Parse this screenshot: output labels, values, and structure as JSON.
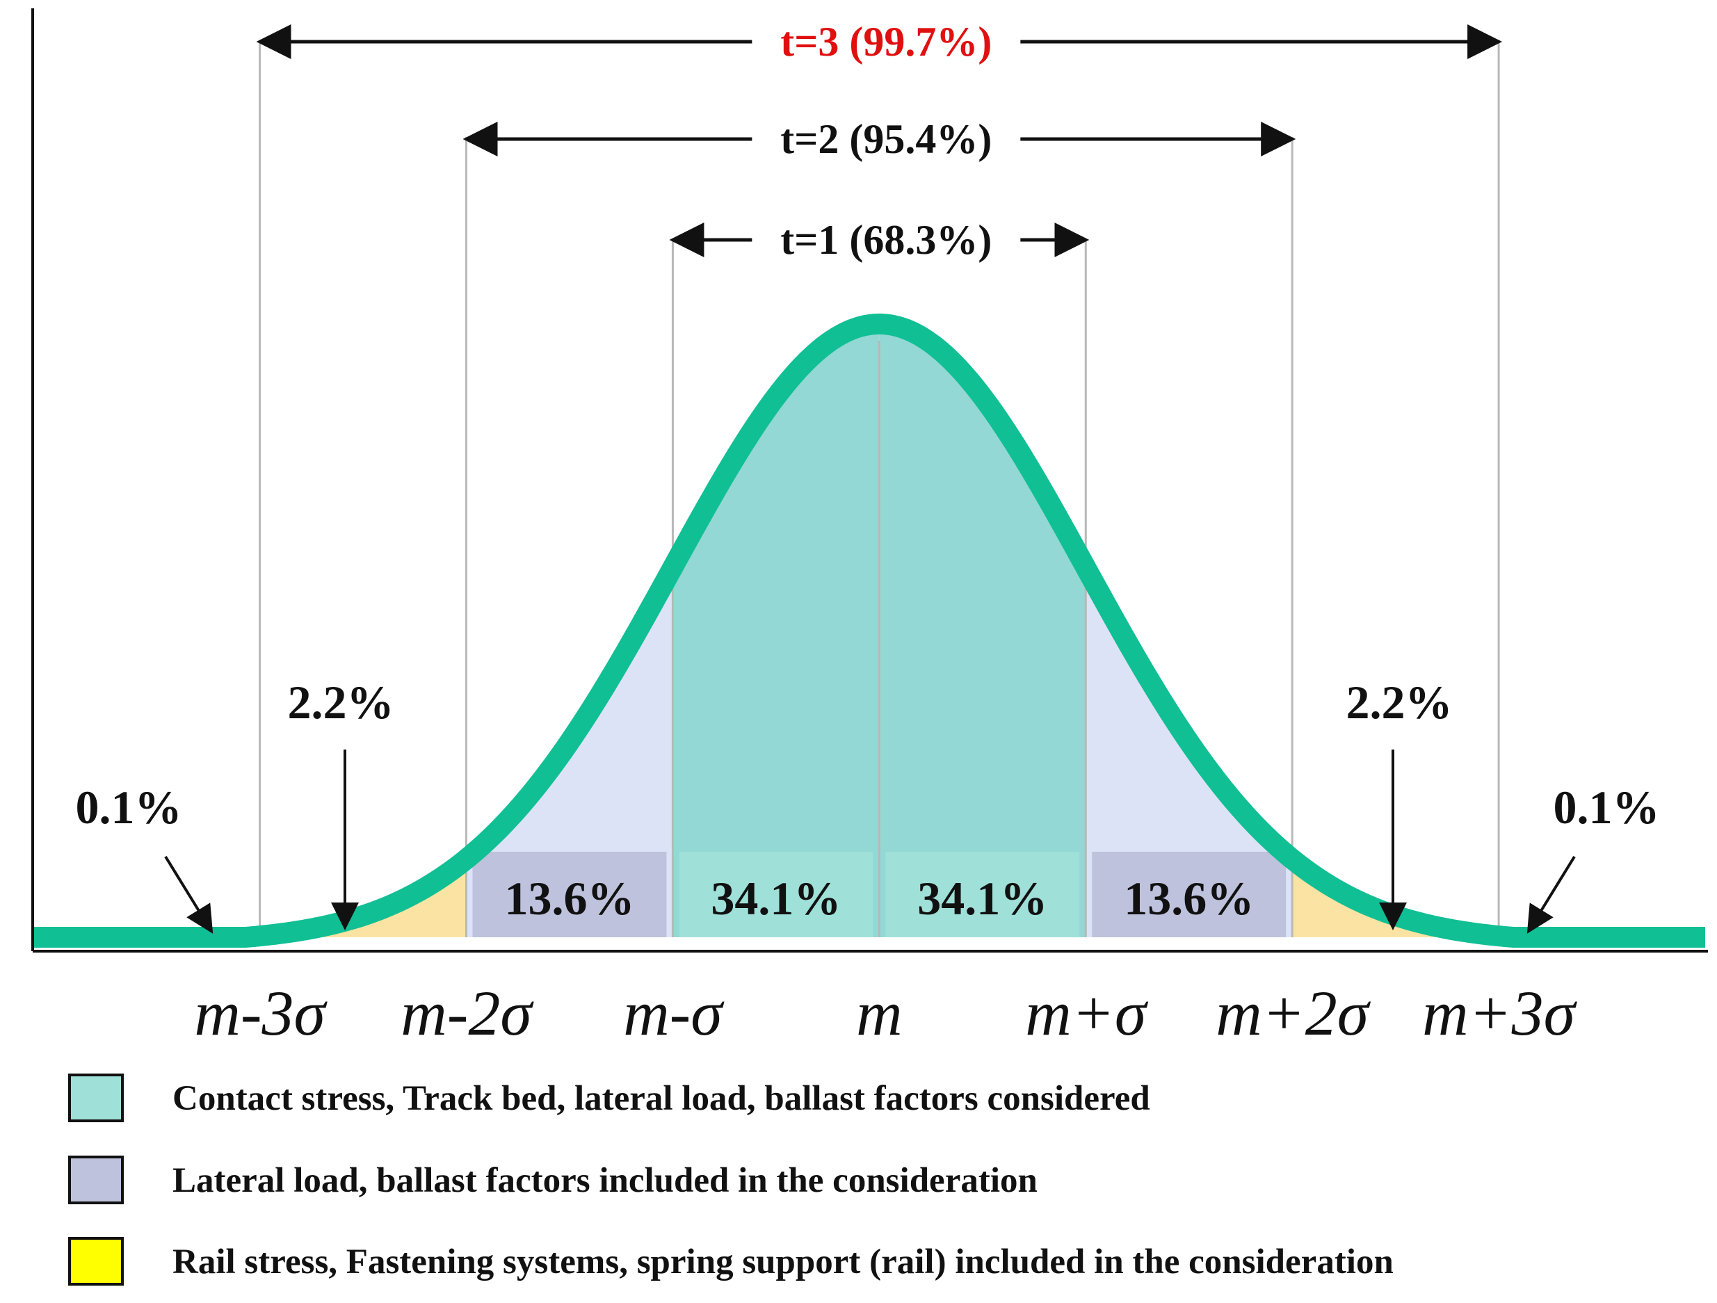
{
  "chart_data": {
    "type": "area",
    "title": "",
    "xlabel": "",
    "ylabel": "",
    "distribution": "normal",
    "xlim": [
      -4.1,
      4.0
    ],
    "ylim": [
      0,
      0.41
    ],
    "tick_labels": [
      "m-3σ",
      "m-2σ",
      "m-σ",
      "m",
      "m+σ",
      "m+2σ",
      "m+3σ"
    ],
    "tick_values": [
      -3,
      -2,
      -1,
      0,
      1,
      2,
      3
    ],
    "regions": [
      {
        "from": -4.1,
        "to": -3,
        "percent": "0.1%",
        "color": "#f7c6cc"
      },
      {
        "from": -3,
        "to": -2,
        "percent": "2.2%",
        "color": "#fbe3a3"
      },
      {
        "from": -2,
        "to": -1,
        "percent": "13.6%",
        "color": "#dde3f6"
      },
      {
        "from": -1,
        "to": 0,
        "percent": "34.1%",
        "color": "#93d8d4"
      },
      {
        "from": 0,
        "to": 1,
        "percent": "34.1%",
        "color": "#93d8d4"
      },
      {
        "from": 1,
        "to": 2,
        "percent": "13.6%",
        "color": "#dde3f6"
      },
      {
        "from": 2,
        "to": 3,
        "percent": "2.2%",
        "color": "#fbe3a3"
      },
      {
        "from": 3,
        "to": 4.0,
        "percent": "0.1%",
        "color": "#f7c6cc"
      }
    ],
    "intervals": [
      {
        "label": "t=1 (68.3%)",
        "from": -1,
        "to": 1,
        "color": "#111111"
      },
      {
        "label": "t=2 (95.4%)",
        "from": -2,
        "to": 2,
        "color": "#111111"
      },
      {
        "label": "t=3 (99.7%)",
        "from": -3,
        "to": 3,
        "color": "#e01010"
      }
    ],
    "curve_color": "#11bf94",
    "legend": [
      {
        "label": "Contact stress, Track bed, lateral load, ballast factors considered",
        "color": "#9fe0d8"
      },
      {
        "label": "Lateral load, ballast factors included in the consideration",
        "color": "#bfc2dc"
      },
      {
        "label": "Rail stress, Fastening systems, spring support (rail) included in the consideration",
        "color": "#ffff00"
      }
    ]
  }
}
